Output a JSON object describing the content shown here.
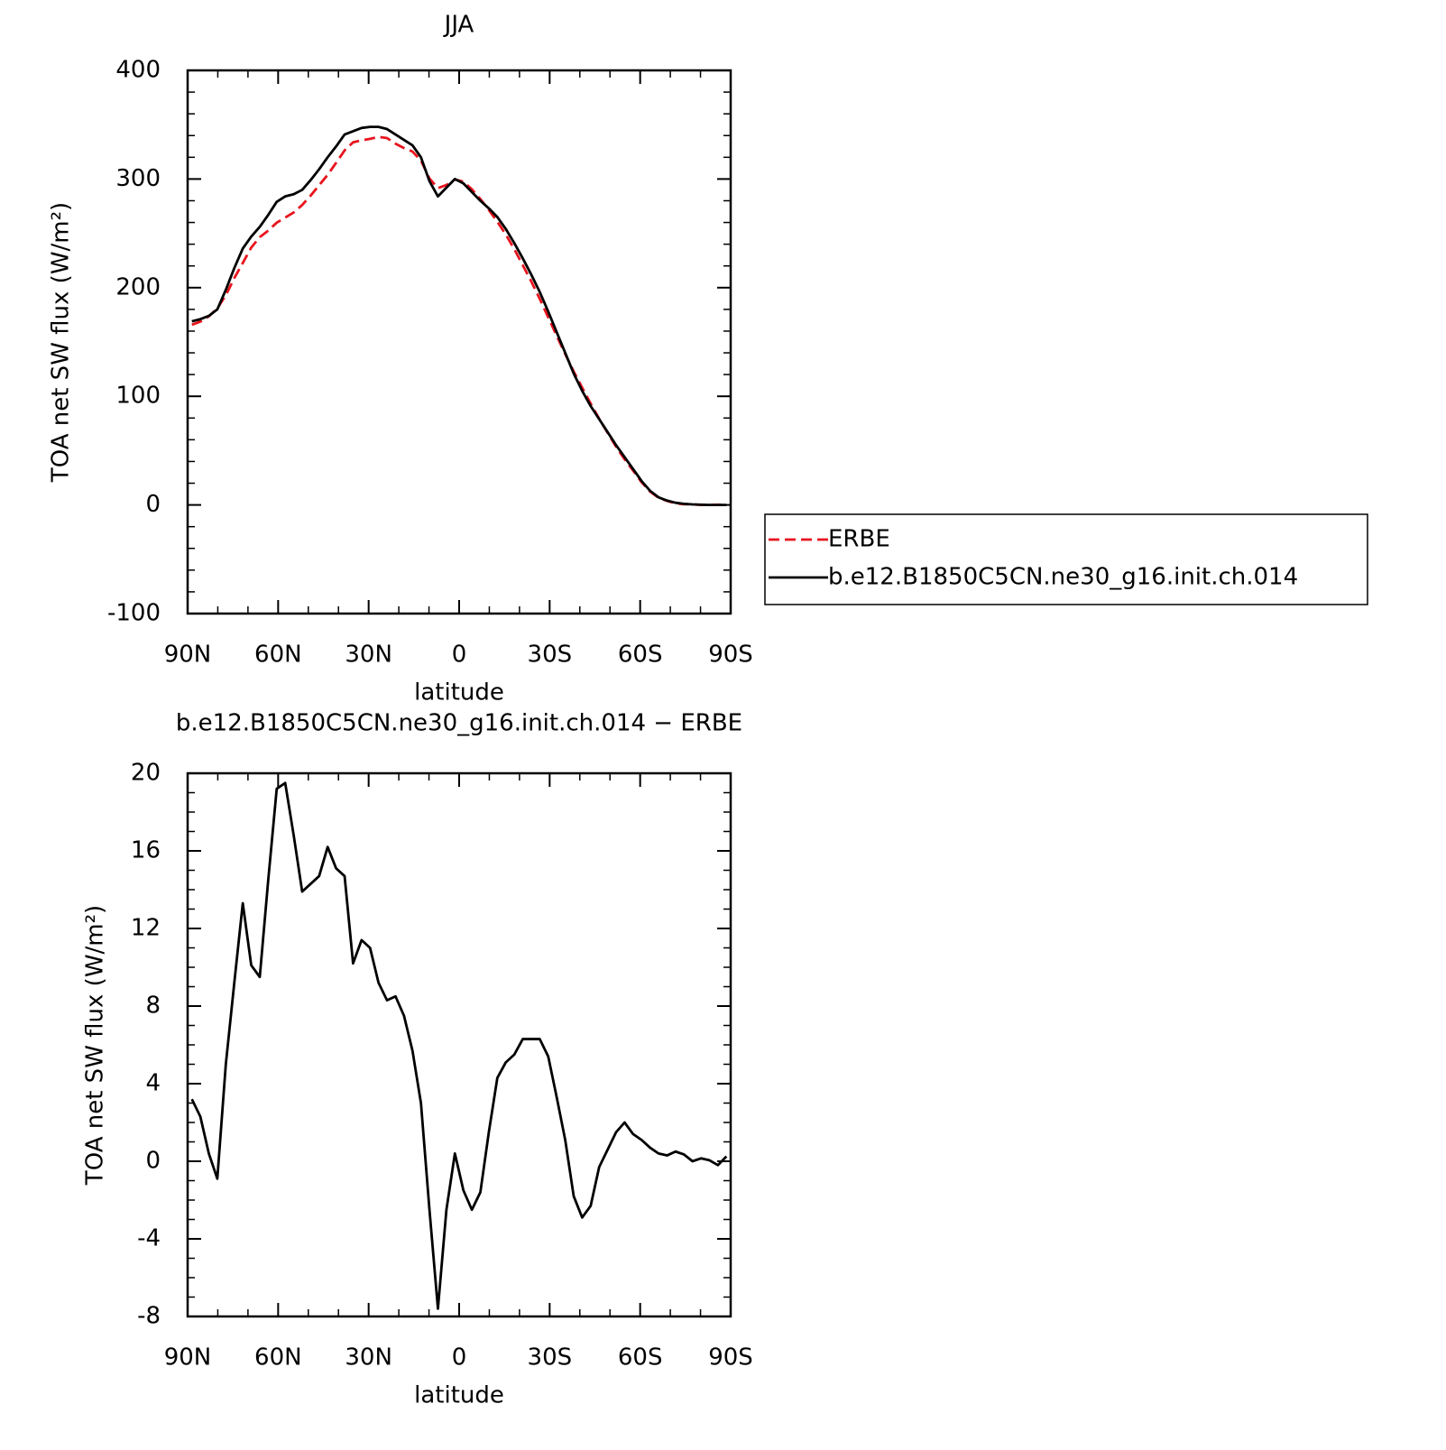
{
  "chart_data": [
    {
      "type": "line",
      "title": "JJA",
      "xlabel": "latitude",
      "ylabel": "TOA net SW flux (W/m²)",
      "x": [
        88.59,
        85.78,
        82.97,
        80.16,
        77.34,
        74.53,
        71.72,
        68.91,
        66.09,
        63.28,
        60.47,
        57.66,
        54.84,
        52.03,
        49.22,
        46.41,
        43.59,
        40.78,
        37.97,
        35.16,
        32.34,
        29.53,
        26.72,
        23.91,
        21.09,
        18.28,
        15.47,
        12.66,
        9.84,
        7.03,
        4.22,
        1.41,
        -1.41,
        -4.22,
        -7.03,
        -9.84,
        -12.66,
        -15.47,
        -18.28,
        -21.09,
        -23.91,
        -26.72,
        -29.53,
        -32.34,
        -35.16,
        -37.97,
        -40.78,
        -43.59,
        -46.41,
        -49.22,
        -52.03,
        -54.84,
        -57.66,
        -60.47,
        -63.28,
        -66.09,
        -68.91,
        -71.72,
        -74.53,
        -77.34,
        -80.16,
        -82.97,
        -85.78,
        -88.59
      ],
      "series": [
        {
          "name": "ERBE",
          "color": "#e8141e",
          "dashed": true,
          "values": [
            165.8,
            168.7,
            173.6,
            180.9,
            193,
            208.8,
            222.7,
            236.9,
            246.5,
            252.5,
            259.8,
            264.5,
            269.2,
            276.1,
            284.7,
            294.3,
            303.8,
            314.9,
            326.3,
            333.8,
            335.6,
            337,
            338.8,
            337.7,
            332.5,
            328.5,
            325.3,
            317,
            300.5,
            291.6,
            294.5,
            299.6,
            297.5,
            290.5,
            281.6,
            271.5,
            260.7,
            248.9,
            235.5,
            220.7,
            205.7,
            189.7,
            172.6,
            155.7,
            138.9,
            122.8,
            107.9,
            93.3,
            79.3,
            66.4,
            53.5,
            42,
            31.6,
            20.9,
            12.3,
            6.6,
            3.7,
            1.5,
            0.65,
            0.5,
            0.05,
            -0.05,
            0.2,
            -0.25
          ]
        },
        {
          "name": "b.e12.B1850C5CN.ne30_g16.init.ch.014",
          "color": "#000000",
          "dashed": false,
          "values": [
            169,
            171,
            174,
            180,
            198,
            218,
            236,
            247,
            256,
            267,
            279,
            284,
            286,
            290,
            299,
            309,
            320,
            330,
            341,
            344,
            347,
            348,
            348,
            346,
            341,
            336,
            331,
            320,
            298,
            284,
            292,
            300,
            296,
            288,
            280,
            273,
            265,
            254,
            241,
            227,
            212,
            196,
            178,
            159,
            140,
            121,
            105,
            91,
            79,
            67,
            55,
            44,
            33,
            22,
            13,
            7,
            4,
            2,
            1,
            0.5,
            0.2,
            0,
            0,
            0
          ]
        }
      ],
      "xlim": [
        90,
        -90
      ],
      "xticks": [
        {
          "value": 90,
          "label": "90N"
        },
        {
          "value": 60,
          "label": "60N"
        },
        {
          "value": 30,
          "label": "30N"
        },
        0,
        {
          "value": -30,
          "label": "30S"
        },
        {
          "value": -60,
          "label": "60S"
        },
        {
          "value": -90,
          "label": "90S"
        }
      ],
      "xminorticks": [
        80,
        70,
        50,
        40,
        20,
        10,
        -10,
        -20,
        -40,
        -50,
        -70,
        -80
      ],
      "ylim": [
        -100,
        400
      ],
      "yticks": [
        -100,
        0,
        100,
        200,
        300,
        400
      ],
      "yminorticks": [
        -80,
        -60,
        -40,
        -20,
        20,
        40,
        60,
        80,
        120,
        140,
        160,
        180,
        220,
        240,
        260,
        280,
        320,
        340,
        360,
        380
      ]
    },
    {
      "type": "line",
      "title": "b.e12.B1850C5CN.ne30_g16.init.ch.014 − ERBE",
      "xlabel": "latitude",
      "ylabel": "TOA net SW flux (W/m²)",
      "x": [
        88.59,
        85.78,
        82.97,
        80.16,
        77.34,
        74.53,
        71.72,
        68.91,
        66.09,
        63.28,
        60.47,
        57.66,
        54.84,
        52.03,
        49.22,
        46.41,
        43.59,
        40.78,
        37.97,
        35.16,
        32.34,
        29.53,
        26.72,
        23.91,
        21.09,
        18.28,
        15.47,
        12.66,
        9.84,
        7.03,
        4.22,
        1.41,
        -1.41,
        -4.22,
        -7.03,
        -9.84,
        -12.66,
        -15.47,
        -18.28,
        -21.09,
        -23.91,
        -26.72,
        -29.53,
        -32.34,
        -35.16,
        -37.97,
        -40.78,
        -43.59,
        -46.41,
        -49.22,
        -52.03,
        -54.84,
        -57.66,
        -60.47,
        -63.28,
        -66.09,
        -68.91,
        -71.72,
        -74.53,
        -77.34,
        -80.16,
        -82.97,
        -85.78,
        -88.59
      ],
      "series": [
        {
          "color": "#000000",
          "dashed": false,
          "values": [
            3.2,
            2.3,
            0.4,
            -0.9,
            5.0,
            9.2,
            13.3,
            10.1,
            9.5,
            14.5,
            19.2,
            19.5,
            16.8,
            13.9,
            14.3,
            14.7,
            16.2,
            15.1,
            14.7,
            10.2,
            11.4,
            11.0,
            9.2,
            8.3,
            8.5,
            7.5,
            5.7,
            3.0,
            -2.5,
            -7.6,
            -2.5,
            0.4,
            -1.5,
            -2.5,
            -1.6,
            1.5,
            4.3,
            5.1,
            5.5,
            6.3,
            6.3,
            6.3,
            5.4,
            3.3,
            1.1,
            -1.8,
            -2.9,
            -2.3,
            -0.3,
            0.6,
            1.5,
            2.0,
            1.4,
            1.1,
            0.7,
            0.4,
            0.3,
            0.5,
            0.35,
            0.0,
            0.15,
            0.05,
            -0.2,
            0.25
          ]
        }
      ],
      "xlim": [
        90,
        -90
      ],
      "xticks": [
        {
          "value": 90,
          "label": "90N"
        },
        {
          "value": 60,
          "label": "60N"
        },
        {
          "value": 30,
          "label": "30N"
        },
        0,
        {
          "value": -30,
          "label": "30S"
        },
        {
          "value": -60,
          "label": "60S"
        },
        {
          "value": -90,
          "label": "90S"
        }
      ],
      "xminorticks": [
        80,
        70,
        50,
        40,
        20,
        10,
        -10,
        -20,
        -40,
        -50,
        -70,
        -80
      ],
      "ylim": [
        -8,
        20
      ],
      "yticks": [
        -8,
        -4,
        0,
        4,
        8,
        12,
        16,
        20
      ],
      "yminorticks": [
        -7,
        -6,
        -5,
        -3,
        -2,
        -1,
        1,
        2,
        3,
        5,
        6,
        7,
        9,
        10,
        11,
        13,
        14,
        15,
        17,
        18,
        19
      ]
    }
  ]
}
